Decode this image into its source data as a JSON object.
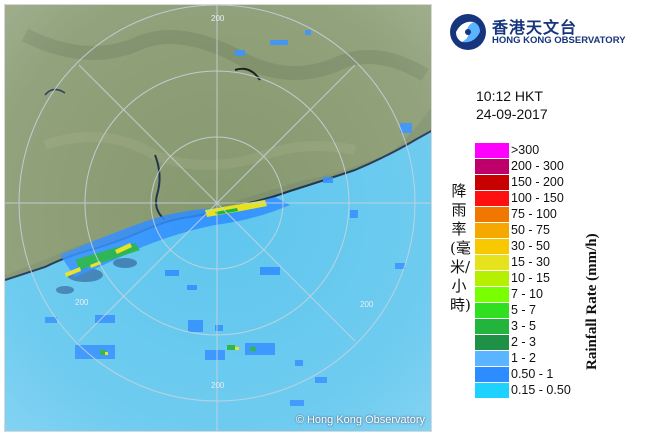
{
  "logo": {
    "name_cn": "香港天文台",
    "name_en": "HONG KONG OBSERVATORY"
  },
  "time": "10:12 HKT",
  "date": "24-09-2017",
  "copyright": "© Hong Kong Observatory",
  "legend": {
    "title_cn": "降雨率(毫米/小時)",
    "title_en": "Rainfall Rate (mm/h)",
    "items": [
      {
        "label": ">300",
        "color": "#ff00ff"
      },
      {
        "label": "200 - 300",
        "color": "#c0006a"
      },
      {
        "label": "150 - 200",
        "color": "#c80000"
      },
      {
        "label": "100 - 150",
        "color": "#ff1010"
      },
      {
        "label": "75 - 100",
        "color": "#f07800"
      },
      {
        "label": "50 - 75",
        "color": "#f5a800"
      },
      {
        "label": "30 - 50",
        "color": "#f8c800"
      },
      {
        "label": "15 - 30",
        "color": "#e6e21e"
      },
      {
        "label": "10 - 15",
        "color": "#b4f000"
      },
      {
        "label": "7 - 10",
        "color": "#78ff00"
      },
      {
        "label": "5 - 7",
        "color": "#30e020"
      },
      {
        "label": "3 - 5",
        "color": "#22b43c"
      },
      {
        "label": "2 - 3",
        "color": "#1e9146"
      },
      {
        "label": "1 - 2",
        "color": "#5ab4ff"
      },
      {
        "label": "0.50 - 1",
        "color": "#2d8cff"
      },
      {
        "label": "0.15 - 0.50",
        "color": "#1ed2ff"
      }
    ]
  },
  "map": {
    "range_labels": [
      "200",
      "200",
      "200",
      "200"
    ],
    "colors": {
      "land": "#7c8f6a",
      "sea": "#5fc6ee",
      "rain_light": "#2d8cff",
      "rain_green": "#22b43c",
      "rain_yellow": "#e6e21e"
    }
  }
}
